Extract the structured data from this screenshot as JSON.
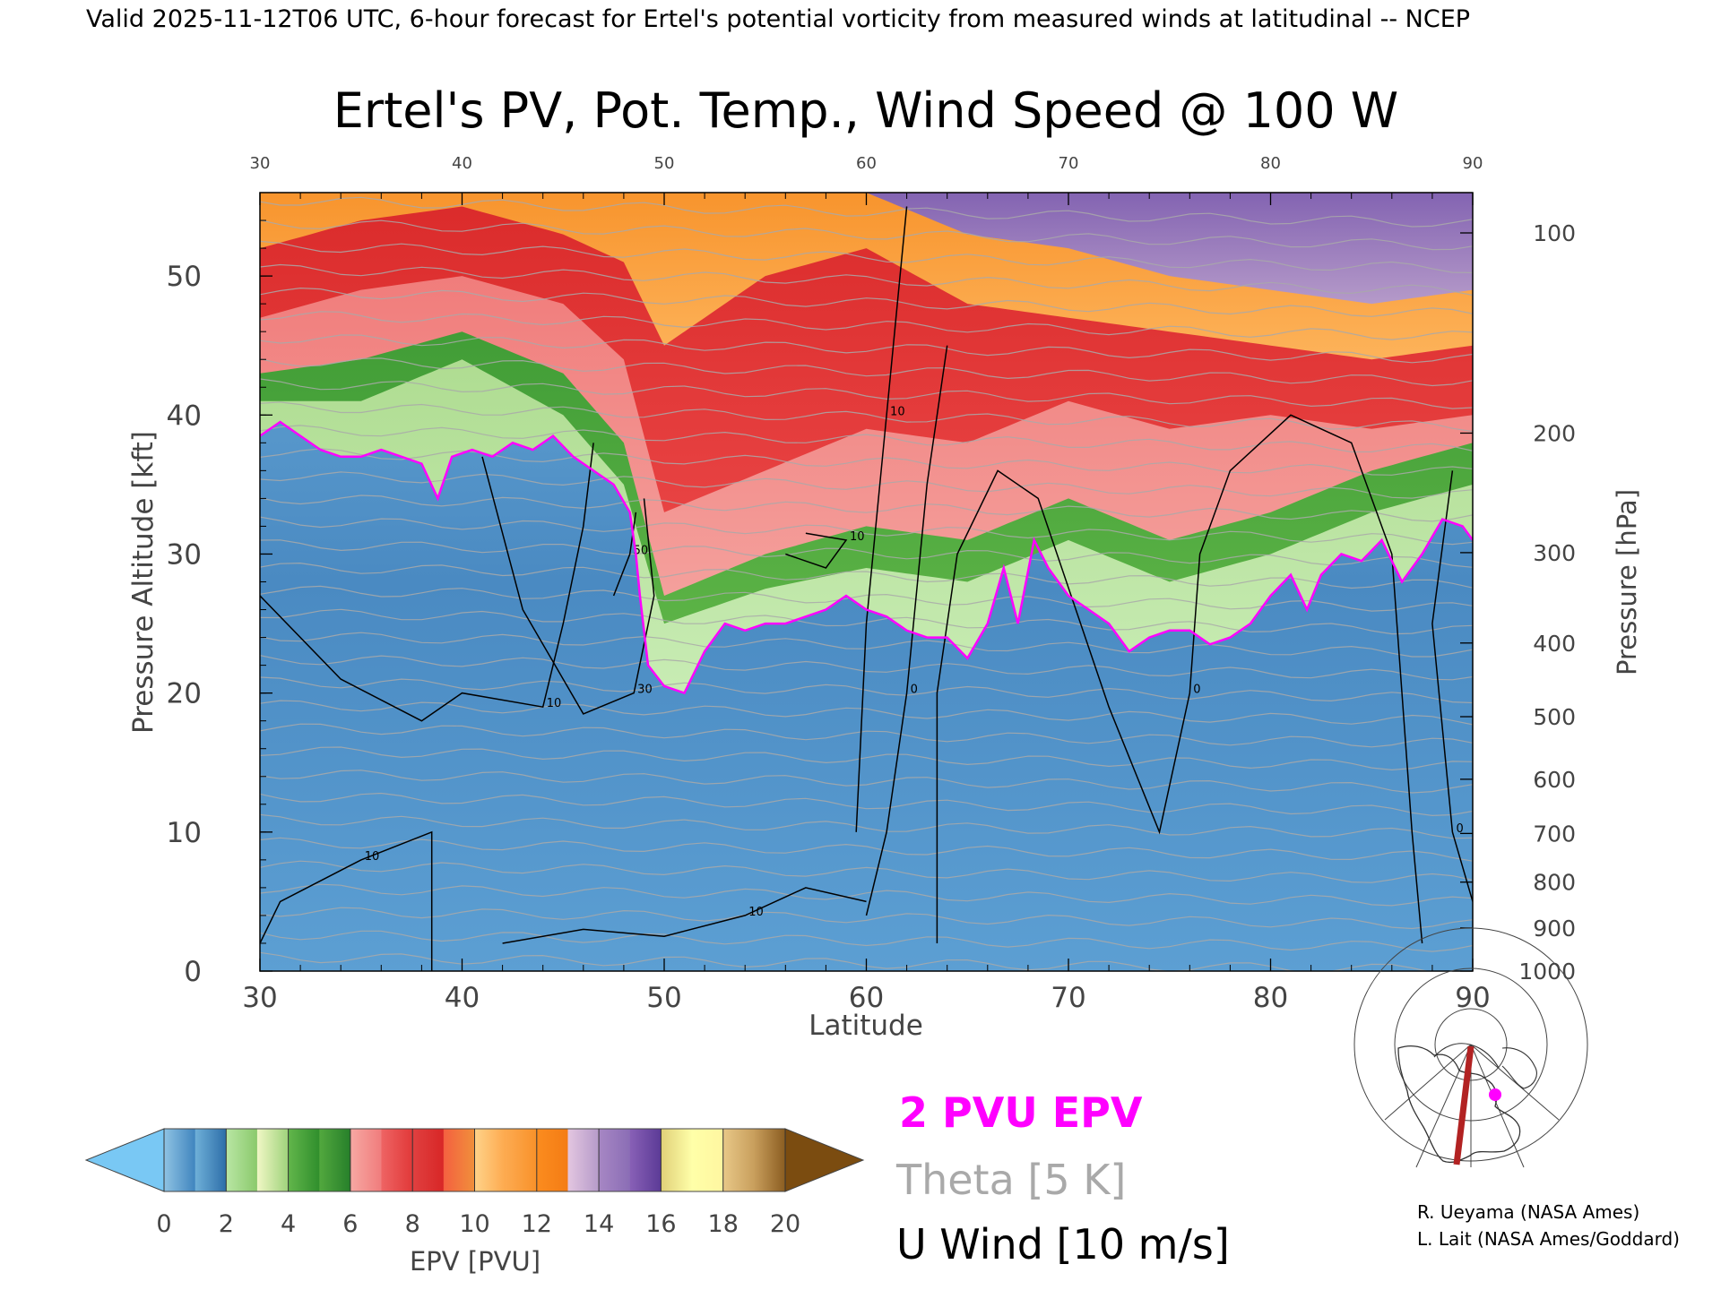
{
  "header": {
    "valid_line": "Valid 2025-11-12T06 UTC, 6-hour forecast for Ertel's potential vorticity from measured winds at latitudinal -- NCEP"
  },
  "chart_data": {
    "type": "heatmap",
    "title": "Ertel's PV, Pot. Temp., Wind Speed @ 100 W",
    "xlabel": "Latitude",
    "ylabel": "Pressure Altitude [kft]",
    "ylabel_right": "Pressure [hPa]",
    "xlim": [
      30,
      90
    ],
    "ylim": [
      0,
      56
    ],
    "x_ticks": [
      "30",
      "40",
      "50",
      "60",
      "70",
      "80",
      "90"
    ],
    "x_tick_values": [
      30,
      40,
      50,
      60,
      70,
      80,
      90
    ],
    "y_ticks": [
      "0",
      "10",
      "20",
      "30",
      "40",
      "50"
    ],
    "y_tick_values": [
      0,
      10,
      20,
      30,
      40,
      50
    ],
    "right_ticks": [
      {
        "label": "1000",
        "kft": 0
      },
      {
        "label": "900",
        "kft": 3.1
      },
      {
        "label": "800",
        "kft": 6.4
      },
      {
        "label": "700",
        "kft": 9.9
      },
      {
        "label": "600",
        "kft": 13.8
      },
      {
        "label": "500",
        "kft": 18.3
      },
      {
        "label": "400",
        "kft": 23.6
      },
      {
        "label": "300",
        "kft": 30.1
      },
      {
        "label": "200",
        "kft": 38.7
      },
      {
        "label": "100",
        "kft": 53.1
      }
    ],
    "tropopause_2pvu_kft": [
      [
        30,
        38.5
      ],
      [
        31,
        39.5
      ],
      [
        32,
        38.5
      ],
      [
        33,
        37.5
      ],
      [
        34,
        37
      ],
      [
        35,
        37
      ],
      [
        36,
        37.5
      ],
      [
        37,
        37
      ],
      [
        38,
        36.5
      ],
      [
        38.8,
        34
      ],
      [
        39.5,
        37
      ],
      [
        40.5,
        37.5
      ],
      [
        41.5,
        37
      ],
      [
        42.5,
        38
      ],
      [
        43.5,
        37.5
      ],
      [
        44.5,
        38.5
      ],
      [
        45.5,
        37
      ],
      [
        46.5,
        36
      ],
      [
        47.5,
        35
      ],
      [
        48.3,
        33
      ],
      [
        48.6,
        30
      ],
      [
        48.8,
        27
      ],
      [
        49.2,
        22
      ],
      [
        50,
        20.5
      ],
      [
        51,
        20
      ],
      [
        52,
        23
      ],
      [
        53,
        25
      ],
      [
        54,
        24.5
      ],
      [
        55,
        25
      ],
      [
        56,
        25
      ],
      [
        57,
        25.5
      ],
      [
        58,
        26
      ],
      [
        59,
        27
      ],
      [
        60,
        26
      ],
      [
        61,
        25.5
      ],
      [
        62,
        24.5
      ],
      [
        63,
        24
      ],
      [
        64,
        24
      ],
      [
        65,
        22.5
      ],
      [
        66,
        25
      ],
      [
        66.8,
        29
      ],
      [
        67.5,
        25
      ],
      [
        68.3,
        31
      ],
      [
        69,
        29
      ],
      [
        70,
        27
      ],
      [
        71,
        26
      ],
      [
        72,
        25
      ],
      [
        73,
        23
      ],
      [
        74,
        24
      ],
      [
        75,
        24.5
      ],
      [
        76,
        24.5
      ],
      [
        77,
        23.5
      ],
      [
        78,
        24
      ],
      [
        79,
        25
      ],
      [
        80,
        27
      ],
      [
        81,
        28.5
      ],
      [
        81.8,
        26
      ],
      [
        82.5,
        28.5
      ],
      [
        83.5,
        30
      ],
      [
        84.5,
        29.5
      ],
      [
        85.5,
        31
      ],
      [
        86.5,
        28
      ],
      [
        87.5,
        30
      ],
      [
        88.5,
        32.5
      ],
      [
        89.5,
        32
      ],
      [
        90,
        31
      ]
    ],
    "epv_bands_top_kft": {
      "light_green_top": [
        [
          30,
          41
        ],
        [
          35,
          41
        ],
        [
          40,
          44
        ],
        [
          45,
          40
        ],
        [
          48,
          35
        ],
        [
          50,
          25
        ],
        [
          55,
          27.5
        ],
        [
          60,
          29
        ],
        [
          65,
          28
        ],
        [
          70,
          31
        ],
        [
          75,
          28
        ],
        [
          80,
          30
        ],
        [
          85,
          33
        ],
        [
          90,
          35
        ]
      ],
      "green_top": [
        [
          30,
          43
        ],
        [
          35,
          44
        ],
        [
          40,
          46
        ],
        [
          45,
          43
        ],
        [
          48,
          38
        ],
        [
          50,
          27
        ],
        [
          55,
          30
        ],
        [
          60,
          32
        ],
        [
          65,
          31
        ],
        [
          70,
          34
        ],
        [
          75,
          31
        ],
        [
          80,
          33
        ],
        [
          85,
          36
        ],
        [
          90,
          38
        ]
      ],
      "pink_top": [
        [
          30,
          47
        ],
        [
          35,
          49
        ],
        [
          40,
          50
        ],
        [
          45,
          48
        ],
        [
          48,
          44
        ],
        [
          50,
          33
        ],
        [
          55,
          36
        ],
        [
          60,
          39
        ],
        [
          65,
          38
        ],
        [
          70,
          41
        ],
        [
          75,
          39
        ],
        [
          80,
          40
        ],
        [
          85,
          39
        ],
        [
          90,
          40
        ]
      ],
      "red_top": [
        [
          30,
          52
        ],
        [
          35,
          54
        ],
        [
          40,
          55
        ],
        [
          45,
          53
        ],
        [
          48,
          51
        ],
        [
          50,
          45
        ],
        [
          55,
          50
        ],
        [
          60,
          52
        ],
        [
          65,
          48
        ],
        [
          70,
          47
        ],
        [
          75,
          46
        ],
        [
          80,
          45
        ],
        [
          85,
          44
        ],
        [
          90,
          45
        ]
      ],
      "orange_top": [
        [
          30,
          56
        ],
        [
          60,
          56
        ],
        [
          65,
          53
        ],
        [
          70,
          52
        ],
        [
          75,
          50
        ],
        [
          80,
          49
        ],
        [
          85,
          48
        ],
        [
          90,
          49
        ]
      ],
      "purple_top": [
        [
          62,
          56
        ],
        [
          66,
          54
        ],
        [
          70,
          56
        ],
        [
          75,
          55
        ],
        [
          80,
          54
        ],
        [
          85,
          55
        ],
        [
          90,
          55
        ]
      ]
    },
    "u_wind_contours_kft": [
      {
        "label": "10",
        "points": [
          [
            30,
            27
          ],
          [
            34,
            21
          ],
          [
            38,
            18
          ],
          [
            40,
            20
          ],
          [
            44,
            19
          ],
          [
            45,
            25
          ],
          [
            46,
            32
          ],
          [
            46.5,
            38
          ]
        ]
      },
      {
        "label": "30",
        "points": [
          [
            41,
            37
          ],
          [
            43,
            26
          ],
          [
            46,
            18.5
          ],
          [
            48.5,
            20
          ],
          [
            49.5,
            27
          ],
          [
            49,
            34
          ]
        ]
      },
      {
        "label": "50",
        "points": [
          [
            47.5,
            27
          ],
          [
            48.3,
            30
          ],
          [
            48.6,
            33
          ]
        ]
      },
      {
        "label": "10",
        "points": [
          [
            56,
            30
          ],
          [
            58,
            29
          ],
          [
            59,
            31
          ],
          [
            57,
            31.5
          ]
        ]
      },
      {
        "label": "10",
        "points": [
          [
            59.5,
            10
          ],
          [
            60,
            25
          ],
          [
            61,
            40
          ],
          [
            62,
            55
          ]
        ]
      },
      {
        "label": "0",
        "points": [
          [
            63.5,
            2
          ],
          [
            63.5,
            20
          ],
          [
            64.5,
            30
          ],
          [
            66.5,
            36
          ],
          [
            68.5,
            34
          ],
          [
            72,
            19
          ],
          [
            74.5,
            10
          ],
          [
            76,
            20
          ],
          [
            76.5,
            30
          ],
          [
            78,
            36
          ],
          [
            81,
            40
          ],
          [
            84,
            38
          ],
          [
            86,
            30
          ],
          [
            87,
            10
          ],
          [
            87.5,
            2
          ]
        ]
      },
      {
        "label": "10",
        "points": [
          [
            38.5,
            0
          ],
          [
            38.5,
            10
          ],
          [
            35,
            8
          ],
          [
            31,
            5
          ],
          [
            30,
            2
          ]
        ]
      },
      {
        "label": "0",
        "points": [
          [
            60,
            4
          ],
          [
            61,
            10
          ],
          [
            62,
            20
          ],
          [
            63,
            35
          ],
          [
            64,
            45
          ]
        ]
      },
      {
        "label": "10",
        "points": [
          [
            42,
            2
          ],
          [
            46,
            3
          ],
          [
            50,
            2.5
          ],
          [
            54,
            4
          ],
          [
            57,
            6
          ],
          [
            60,
            5
          ]
        ]
      },
      {
        "label": "0",
        "points": [
          [
            89,
            36
          ],
          [
            88,
            25
          ],
          [
            89,
            10
          ],
          [
            90,
            5
          ]
        ]
      }
    ],
    "legend_pvu_epv": "2 PVU EPV",
    "legend_theta": "Theta [5 K]",
    "legend_uwind": "U Wind [10 m/s]",
    "colorbar": {
      "label": "EPV [PVU]",
      "ticks": [
        "0",
        "2",
        "4",
        "6",
        "8",
        "10",
        "12",
        "14",
        "16",
        "18",
        "20"
      ],
      "under_color": "#79c8f4",
      "over_color": "#7b4c10",
      "segments": [
        [
          "#8fc3e3",
          "#3f84be"
        ],
        [
          "#6fb0d8",
          "#2c6da8"
        ],
        [
          "#b9e6a4",
          "#8ac96b"
        ],
        [
          "#f0f7c5",
          "#9ed27a"
        ],
        [
          "#62b64b",
          "#2f8e2c"
        ],
        [
          "#52a83e",
          "#267f2a"
        ],
        [
          "#f7a8a3",
          "#f07c7c"
        ],
        [
          "#ee6464",
          "#e13838"
        ],
        [
          "#e04040",
          "#d82626"
        ],
        [
          "#f46040",
          "#f0903b"
        ],
        [
          "#ffd38a",
          "#fda84c"
        ],
        [
          "#fdaa50",
          "#f89129"
        ],
        [
          "#fb8c1f",
          "#f47c14"
        ],
        [
          "#e3c6e0",
          "#b59ac9"
        ],
        [
          "#a787c4",
          "#8a6db5"
        ],
        [
          "#8860b6",
          "#5b3a96"
        ],
        [
          "#e0d078",
          "#ffffa9"
        ],
        [
          "#ffffa8",
          "#fff6a0"
        ],
        [
          "#e8c888",
          "#c89e5c"
        ],
        [
          "#c89e5c",
          "#8a5c20"
        ]
      ]
    },
    "credits": [
      "R. Ueyama (NASA Ames)",
      "L. Lait (NASA Ames/Goddard)"
    ],
    "inset_map": {
      "section_longitude": "100 W",
      "marker_color": "#ff00ff",
      "section_color": "#b22222"
    },
    "colors": {
      "epv_2pvu": "#ff00ff",
      "theta": "#a9a9a9",
      "u_wind": "#000000",
      "background_low": "#4a8dc6"
    }
  }
}
